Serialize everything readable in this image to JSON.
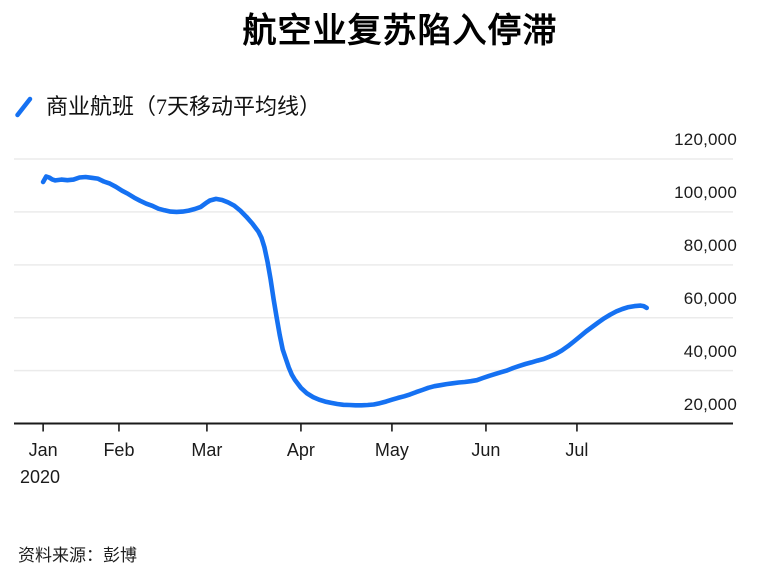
{
  "header": {
    "title": "航空业复苏陷入停滞"
  },
  "legend": {
    "label": "商业航班（7天移动平均线）",
    "marker_color": "#1571F2"
  },
  "footer": {
    "source": "资料来源：彭博"
  },
  "chart_data": {
    "type": "line",
    "title": "航空业复苏陷入停滞",
    "series_name": "商业航班（7天移动平均线）",
    "line_color": "#1571F2",
    "grid": true,
    "grid_color": "#ebebeb",
    "axis_color": "#1a1a1a",
    "y_axis": {
      "side": "right",
      "range": [
        20000,
        120000
      ],
      "ticks": [
        120000,
        100000,
        80000,
        60000,
        40000,
        20000
      ],
      "tick_labels": [
        "120,000",
        "100,000",
        "80,000",
        "60,000",
        "40,000",
        "20,000"
      ]
    },
    "x_axis": {
      "year_label": "2020",
      "months": [
        {
          "label": "Jan",
          "day": 7
        },
        {
          "label": "Feb",
          "day": 32
        },
        {
          "label": "Mar",
          "day": 61
        },
        {
          "label": "Apr",
          "day": 92
        },
        {
          "label": "May",
          "day": 122
        },
        {
          "label": "Jun",
          "day": 153
        },
        {
          "label": "Jul",
          "day": 183
        }
      ]
    },
    "points_format": [
      "day_of_year_2020",
      "flights"
    ],
    "points": [
      [
        7,
        111300
      ],
      [
        8,
        113400
      ],
      [
        9,
        113000
      ],
      [
        10,
        112300
      ],
      [
        11,
        111900
      ],
      [
        13,
        112200
      ],
      [
        15,
        112000
      ],
      [
        17,
        112200
      ],
      [
        19,
        113000
      ],
      [
        21,
        113200
      ],
      [
        23,
        112900
      ],
      [
        25,
        112600
      ],
      [
        27,
        111500
      ],
      [
        29,
        110700
      ],
      [
        31,
        109500
      ],
      [
        33,
        108000
      ],
      [
        35,
        106800
      ],
      [
        37,
        105400
      ],
      [
        39,
        104200
      ],
      [
        41,
        103100
      ],
      [
        43,
        102300
      ],
      [
        45,
        101200
      ],
      [
        47,
        100600
      ],
      [
        49,
        100100
      ],
      [
        51,
        100000
      ],
      [
        53,
        100100
      ],
      [
        55,
        100500
      ],
      [
        57,
        101100
      ],
      [
        59,
        101900
      ],
      [
        61,
        103600
      ],
      [
        62,
        104300
      ],
      [
        64,
        104900
      ],
      [
        66,
        104500
      ],
      [
        68,
        103600
      ],
      [
        70,
        102400
      ],
      [
        72,
        100500
      ],
      [
        74,
        98200
      ],
      [
        76,
        95600
      ],
      [
        78,
        92500
      ],
      [
        79,
        90200
      ],
      [
        80,
        86500
      ],
      [
        81,
        81000
      ],
      [
        82,
        74500
      ],
      [
        83,
        67000
      ],
      [
        84,
        60000
      ],
      [
        85,
        53500
      ],
      [
        86,
        48000
      ],
      [
        87,
        44500
      ],
      [
        88,
        41200
      ],
      [
        89,
        38500
      ],
      [
        90,
        36500
      ],
      [
        92,
        33500
      ],
      [
        94,
        31400
      ],
      [
        96,
        30000
      ],
      [
        98,
        29000
      ],
      [
        100,
        28300
      ],
      [
        102,
        27800
      ],
      [
        104,
        27400
      ],
      [
        106,
        27100
      ],
      [
        108,
        27000
      ],
      [
        110,
        26900
      ],
      [
        112,
        26900
      ],
      [
        114,
        27000
      ],
      [
        116,
        27200
      ],
      [
        118,
        27700
      ],
      [
        120,
        28300
      ],
      [
        122,
        29000
      ],
      [
        124,
        29700
      ],
      [
        126,
        30300
      ],
      [
        128,
        31000
      ],
      [
        130,
        31900
      ],
      [
        132,
        32700
      ],
      [
        134,
        33500
      ],
      [
        136,
        34100
      ],
      [
        138,
        34500
      ],
      [
        140,
        34900
      ],
      [
        142,
        35200
      ],
      [
        144,
        35500
      ],
      [
        146,
        35700
      ],
      [
        148,
        36000
      ],
      [
        150,
        36400
      ],
      [
        152,
        37200
      ],
      [
        154,
        38000
      ],
      [
        156,
        38700
      ],
      [
        158,
        39400
      ],
      [
        160,
        40100
      ],
      [
        162,
        41000
      ],
      [
        164,
        41800
      ],
      [
        166,
        42500
      ],
      [
        168,
        43100
      ],
      [
        170,
        43800
      ],
      [
        172,
        44400
      ],
      [
        174,
        45300
      ],
      [
        176,
        46300
      ],
      [
        178,
        47600
      ],
      [
        180,
        49200
      ],
      [
        182,
        51000
      ],
      [
        184,
        52900
      ],
      [
        186,
        54800
      ],
      [
        188,
        56500
      ],
      [
        190,
        58200
      ],
      [
        192,
        59800
      ],
      [
        194,
        61200
      ],
      [
        196,
        62400
      ],
      [
        198,
        63300
      ],
      [
        200,
        64000
      ],
      [
        202,
        64400
      ],
      [
        204,
        64600
      ],
      [
        205,
        64400
      ],
      [
        206,
        63700
      ]
    ]
  }
}
